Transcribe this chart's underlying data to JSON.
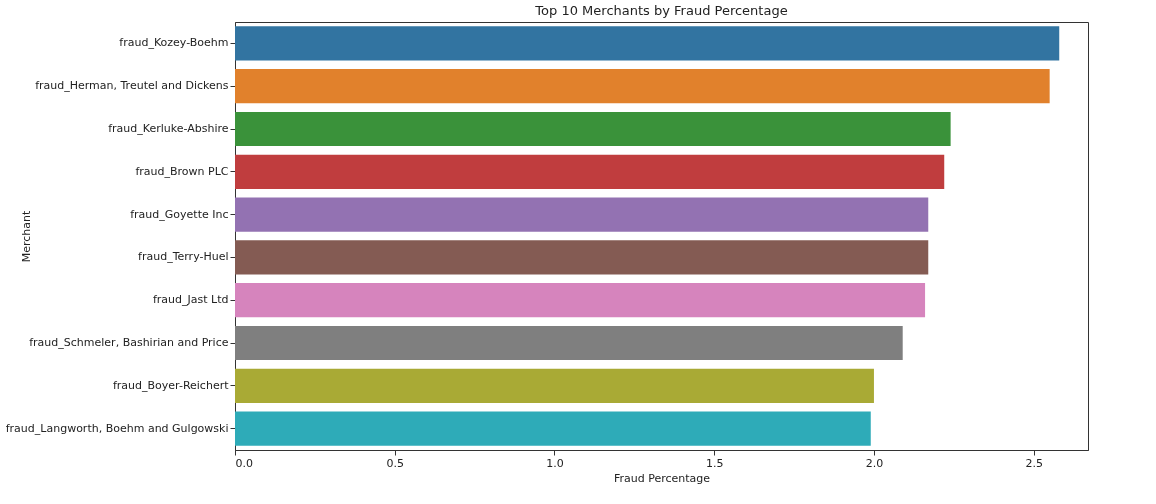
{
  "chart_data": {
    "type": "bar",
    "orientation": "horizontal",
    "title": "Top 10 Merchants by Fraud Percentage",
    "xlabel": "Fraud Percentage",
    "ylabel": "Merchant",
    "categories": [
      "fraud_Kozey-Boehm",
      "fraud_Herman, Treutel and Dickens",
      "fraud_Kerluke-Abshire",
      "fraud_Brown PLC",
      "fraud_Goyette Inc",
      "fraud_Terry-Huel",
      "fraud_Jast Ltd",
      "fraud_Schmeler, Bashirian and Price",
      "fraud_Boyer-Reichert",
      "fraud_Langworth, Boehm and Gulgowski"
    ],
    "values": [
      2.58,
      2.55,
      2.24,
      2.22,
      2.17,
      2.17,
      2.16,
      2.09,
      2.0,
      1.99
    ],
    "colors": [
      "#3274a1",
      "#e1812c",
      "#3a923a",
      "#c03d3e",
      "#9372b2",
      "#845b53",
      "#d684bd",
      "#7f7f7f",
      "#a9aa35",
      "#2eabb8"
    ],
    "xlim": [
      0,
      2.67
    ],
    "xticks": [
      {
        "value": 0,
        "label": "0.0"
      },
      0.5,
      {
        "value": 1,
        "label": "1.0"
      },
      1.5,
      {
        "value": 2,
        "label": "2.0"
      },
      2.5
    ],
    "grid": false
  }
}
